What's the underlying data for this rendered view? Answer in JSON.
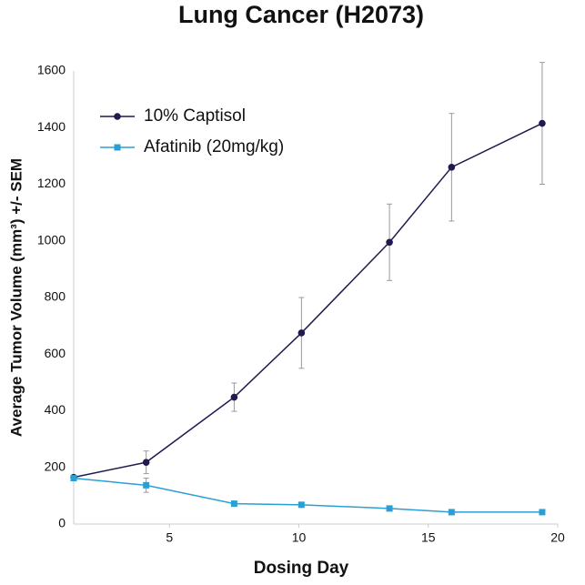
{
  "chart_data": {
    "type": "line",
    "title": "Lung Cancer (H2073)",
    "x_label": "Dosing Day",
    "y_label": "Average Tumor Volume (mm³) +/- SEM",
    "x": [
      1.3,
      4.1,
      7.5,
      10.1,
      13.5,
      15.9,
      19.4
    ],
    "series": [
      {
        "name": "10% Captisol",
        "color": "#1f1a4f",
        "marker": "circle",
        "values": [
          165,
          218,
          448,
          675,
          995,
          1260,
          1415
        ],
        "errors": [
          5,
          40,
          50,
          125,
          135,
          190,
          215
        ]
      },
      {
        "name": "Afatinib (20mg/kg)",
        "color": "#2a9fd6",
        "marker": "square",
        "values": [
          162,
          137,
          72,
          68,
          55,
          42,
          42
        ],
        "errors": [
          5,
          25,
          8,
          8,
          8,
          6,
          6
        ]
      }
    ],
    "xlim": [
      1.3,
      20
    ],
    "xticks": [
      5,
      10,
      15,
      20
    ],
    "ylim": [
      0,
      1600
    ],
    "yticks": [
      0,
      200,
      400,
      600,
      800,
      1000,
      1200,
      1400,
      1600
    ],
    "grid": false,
    "legend": "top-left"
  }
}
